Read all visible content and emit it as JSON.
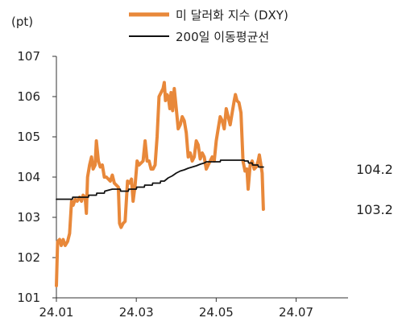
{
  "chart_data": {
    "type": "line",
    "unit_label": "(pt)",
    "ylim": [
      101,
      107
    ],
    "y_ticks": [
      "101",
      "102",
      "103",
      "104",
      "105",
      "106",
      "107"
    ],
    "x_ticks": [
      {
        "label": "24.01",
        "x": 0
      },
      {
        "label": "24.03",
        "x": 2
      },
      {
        "label": "24.05",
        "x": 4
      },
      {
        "label": "24.07",
        "x": 6
      }
    ],
    "xlim": [
      0,
      7.3
    ],
    "grid": false,
    "legend_position": "top-center",
    "colors": {
      "dxy": "#e8883a",
      "ma200": "#111111"
    },
    "series": [
      {
        "key": "dxy",
        "name": "미 달러화 지수 (DXY)",
        "points": [
          [
            0.0,
            101.3
          ],
          [
            0.03,
            102.4
          ],
          [
            0.08,
            102.45
          ],
          [
            0.12,
            102.3
          ],
          [
            0.17,
            102.45
          ],
          [
            0.22,
            102.3
          ],
          [
            0.28,
            102.4
          ],
          [
            0.33,
            102.6
          ],
          [
            0.38,
            103.4
          ],
          [
            0.42,
            103.3
          ],
          [
            0.47,
            103.45
          ],
          [
            0.52,
            103.4
          ],
          [
            0.58,
            103.5
          ],
          [
            0.63,
            103.4
          ],
          [
            0.67,
            103.55
          ],
          [
            0.72,
            103.5
          ],
          [
            0.75,
            103.1
          ],
          [
            0.78,
            104.0
          ],
          [
            0.83,
            104.3
          ],
          [
            0.88,
            104.5
          ],
          [
            0.92,
            104.2
          ],
          [
            0.97,
            104.3
          ],
          [
            1.0,
            104.9
          ],
          [
            1.05,
            104.4
          ],
          [
            1.1,
            104.25
          ],
          [
            1.15,
            104.3
          ],
          [
            1.2,
            104.0
          ],
          [
            1.25,
            104.0
          ],
          [
            1.3,
            103.95
          ],
          [
            1.35,
            103.9
          ],
          [
            1.4,
            104.05
          ],
          [
            1.45,
            103.85
          ],
          [
            1.5,
            103.8
          ],
          [
            1.55,
            103.75
          ],
          [
            1.58,
            102.85
          ],
          [
            1.62,
            102.75
          ],
          [
            1.67,
            102.85
          ],
          [
            1.72,
            102.9
          ],
          [
            1.78,
            103.9
          ],
          [
            1.83,
            103.85
          ],
          [
            1.88,
            103.95
          ],
          [
            1.92,
            103.4
          ],
          [
            1.97,
            103.8
          ],
          [
            2.02,
            104.4
          ],
          [
            2.07,
            104.3
          ],
          [
            2.12,
            104.35
          ],
          [
            2.17,
            104.4
          ],
          [
            2.22,
            104.9
          ],
          [
            2.27,
            104.4
          ],
          [
            2.32,
            104.4
          ],
          [
            2.37,
            104.2
          ],
          [
            2.42,
            104.2
          ],
          [
            2.47,
            104.3
          ],
          [
            2.52,
            105.0
          ],
          [
            2.57,
            106.0
          ],
          [
            2.62,
            106.1
          ],
          [
            2.67,
            106.2
          ],
          [
            2.7,
            106.35
          ],
          [
            2.73,
            105.9
          ],
          [
            2.77,
            106.05
          ],
          [
            2.8,
            106.0
          ],
          [
            2.84,
            105.7
          ],
          [
            2.87,
            106.1
          ],
          [
            2.91,
            105.65
          ],
          [
            2.95,
            106.2
          ],
          [
            3.0,
            105.7
          ],
          [
            3.05,
            105.2
          ],
          [
            3.1,
            105.3
          ],
          [
            3.15,
            105.5
          ],
          [
            3.2,
            105.4
          ],
          [
            3.25,
            105.1
          ],
          [
            3.3,
            104.5
          ],
          [
            3.35,
            104.6
          ],
          [
            3.4,
            104.4
          ],
          [
            3.45,
            104.5
          ],
          [
            3.5,
            104.9
          ],
          [
            3.55,
            104.8
          ],
          [
            3.6,
            104.45
          ],
          [
            3.65,
            104.6
          ],
          [
            3.7,
            104.5
          ],
          [
            3.75,
            104.2
          ],
          [
            3.8,
            104.3
          ],
          [
            3.85,
            104.4
          ],
          [
            3.9,
            104.5
          ],
          [
            3.95,
            104.4
          ],
          [
            4.0,
            104.9
          ],
          [
            4.05,
            105.2
          ],
          [
            4.1,
            105.5
          ],
          [
            4.15,
            105.4
          ],
          [
            4.2,
            105.2
          ],
          [
            4.25,
            105.7
          ],
          [
            4.3,
            105.5
          ],
          [
            4.35,
            105.3
          ],
          [
            4.4,
            105.6
          ],
          [
            4.45,
            105.9
          ],
          [
            4.48,
            106.05
          ],
          [
            4.52,
            105.9
          ],
          [
            4.57,
            105.85
          ],
          [
            4.62,
            105.6
          ],
          [
            4.67,
            104.4
          ],
          [
            4.72,
            104.15
          ],
          [
            4.77,
            104.2
          ],
          [
            4.8,
            103.7
          ],
          [
            4.85,
            104.3
          ],
          [
            4.9,
            104.4
          ],
          [
            4.95,
            104.2
          ],
          [
            5.0,
            104.25
          ],
          [
            5.05,
            104.4
          ],
          [
            5.08,
            104.55
          ],
          [
            5.12,
            104.3
          ],
          [
            5.15,
            104.1
          ],
          [
            5.18,
            103.2
          ]
        ]
      },
      {
        "key": "ma200",
        "name": "200일 이동평균선",
        "points": [
          [
            0.0,
            103.45
          ],
          [
            0.4,
            103.45
          ],
          [
            0.41,
            103.5
          ],
          [
            0.8,
            103.5
          ],
          [
            0.81,
            103.55
          ],
          [
            1.0,
            103.55
          ],
          [
            1.01,
            103.6
          ],
          [
            1.2,
            103.6
          ],
          [
            1.21,
            103.65
          ],
          [
            1.4,
            103.7
          ],
          [
            1.6,
            103.7
          ],
          [
            1.61,
            103.65
          ],
          [
            1.8,
            103.65
          ],
          [
            1.81,
            103.7
          ],
          [
            2.0,
            103.7
          ],
          [
            2.01,
            103.75
          ],
          [
            2.2,
            103.75
          ],
          [
            2.21,
            103.8
          ],
          [
            2.4,
            103.8
          ],
          [
            2.41,
            103.85
          ],
          [
            2.6,
            103.85
          ],
          [
            2.61,
            103.9
          ],
          [
            2.7,
            103.9
          ],
          [
            2.8,
            103.98
          ],
          [
            2.9,
            104.03
          ],
          [
            3.0,
            104.1
          ],
          [
            3.1,
            104.15
          ],
          [
            3.2,
            104.18
          ],
          [
            3.3,
            104.22
          ],
          [
            3.4,
            104.25
          ],
          [
            3.5,
            104.28
          ],
          [
            3.6,
            104.32
          ],
          [
            3.7,
            104.35
          ],
          [
            3.75,
            104.38
          ],
          [
            4.1,
            104.38
          ],
          [
            4.11,
            104.42
          ],
          [
            4.7,
            104.42
          ],
          [
            4.71,
            104.4
          ],
          [
            4.8,
            104.4
          ],
          [
            4.81,
            104.35
          ],
          [
            4.9,
            104.35
          ],
          [
            4.91,
            104.3
          ],
          [
            5.05,
            104.3
          ],
          [
            5.06,
            104.25
          ],
          [
            5.18,
            104.25
          ]
        ]
      }
    ],
    "end_labels": [
      {
        "series": "ma200",
        "text": "104.2",
        "value": 104.2
      },
      {
        "series": "dxy",
        "text": "103.2",
        "value": 103.2
      }
    ]
  }
}
